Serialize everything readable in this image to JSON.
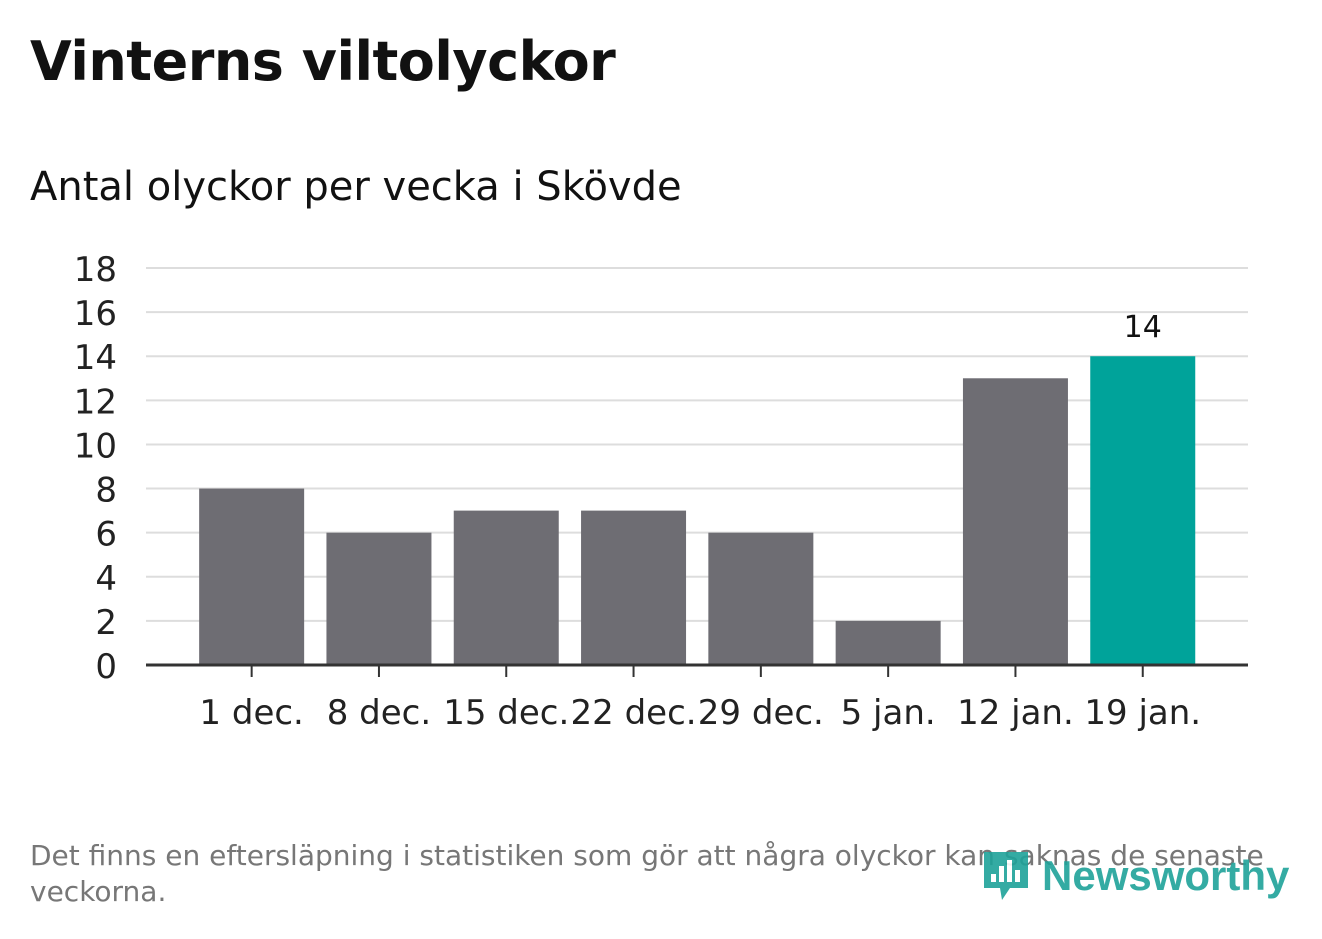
{
  "title": "Vinterns viltolyckor",
  "subtitle": "Antal olyckor per vecka i Skövde",
  "footnote": "Det finns en eftersläpning i statistiken som gör att några olyckor kan saknas de senaste veckorna.",
  "logo": {
    "text": "Newsworthy",
    "icon": "newsworthy-logo-icon"
  },
  "colors": {
    "bar": "#6e6d73",
    "highlight": "#00a39a",
    "grid": "#dddddd",
    "axis": "#333333"
  },
  "chart_data": {
    "type": "bar",
    "categories": [
      "1 dec.",
      "8 dec.",
      "15 dec.",
      "22 dec.",
      "29 dec.",
      "5 jan.",
      "12 jan.",
      "19 jan."
    ],
    "values": [
      8,
      6,
      7,
      7,
      6,
      2,
      13,
      14
    ],
    "highlight_index": 7,
    "data_labels": [
      null,
      null,
      null,
      null,
      null,
      null,
      null,
      "14"
    ],
    "yticks": [
      0,
      2,
      4,
      6,
      8,
      10,
      12,
      14,
      16,
      18
    ],
    "ylim": [
      0,
      18
    ],
    "grid": true,
    "xlabel": "",
    "ylabel": ""
  }
}
